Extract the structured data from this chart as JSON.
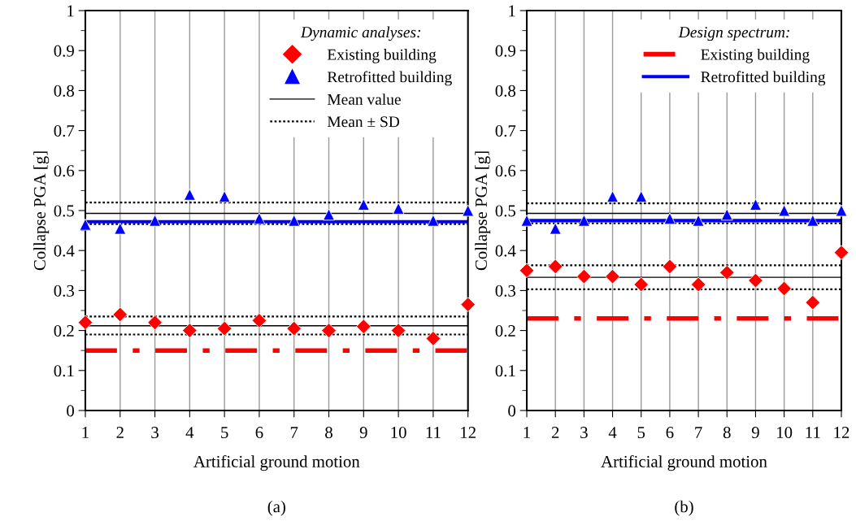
{
  "chart_data": [
    {
      "type": "scatter",
      "xlabel": "Artificial ground motion",
      "ylabel": "Collapse PGA [g]",
      "legend_title": "Dynamic analyses:",
      "legend": "top right",
      "grid": "x",
      "x": [
        1,
        2,
        3,
        4,
        5,
        6,
        7,
        8,
        9,
        10,
        11,
        12
      ],
      "xlim": [
        1,
        12
      ],
      "xticks": [
        1,
        2,
        3,
        4,
        5,
        6,
        7,
        8,
        9,
        10,
        11,
        12
      ],
      "ylim": [
        0,
        1
      ],
      "yticks": [
        0,
        0.1,
        0.2,
        0.3,
        0.4,
        0.5,
        0.6,
        0.7,
        0.8,
        0.9,
        1
      ],
      "series": [
        {
          "name": "Existing building",
          "color": "#ff0000",
          "marker": "diamond",
          "values": [
            0.22,
            0.24,
            0.22,
            0.2,
            0.205,
            0.225,
            0.205,
            0.2,
            0.21,
            0.2,
            0.18,
            0.265
          ]
        },
        {
          "name": "Retrofitted building",
          "color": "#0000ff",
          "marker": "triangle",
          "values": [
            0.465,
            0.455,
            0.475,
            0.54,
            0.535,
            0.48,
            0.475,
            0.49,
            0.515,
            0.505,
            0.475,
            0.5
          ]
        }
      ],
      "ref_lines": [
        {
          "axis": "y",
          "value": 0.15,
          "color": "#ff0000",
          "line_style": "dashed"
        },
        {
          "axis": "y",
          "value": 0.472,
          "color": "#0000ff",
          "line_style": "solid"
        },
        {
          "axis": "y",
          "value": 0.493,
          "label": "Mean value",
          "color": "#000000",
          "line_style": "solid"
        },
        {
          "axis": "y",
          "value": 0.212,
          "color": "#000000",
          "line_style": "solid"
        },
        {
          "axis": "y",
          "value": 0.52,
          "label": "Mean ± SD",
          "color": "#000000",
          "line_style": "dotted"
        },
        {
          "axis": "y",
          "value": 0.466,
          "color": "#000000",
          "line_style": "dotted"
        },
        {
          "axis": "y",
          "value": 0.235,
          "color": "#000000",
          "line_style": "dotted"
        },
        {
          "axis": "y",
          "value": 0.19,
          "color": "#000000",
          "line_style": "dotted"
        }
      ],
      "annotations": [
        "(a)"
      ]
    },
    {
      "type": "scatter",
      "xlabel": "Artificial ground motion",
      "ylabel": "Collapse PGA [g]",
      "legend_title": "Design spectrum:",
      "legend": "top right",
      "grid": "x",
      "x": [
        1,
        2,
        3,
        4,
        5,
        6,
        7,
        8,
        9,
        10,
        11,
        12
      ],
      "xlim": [
        1,
        12
      ],
      "xticks": [
        1,
        2,
        3,
        4,
        5,
        6,
        7,
        8,
        9,
        10,
        11,
        12
      ],
      "ylim": [
        0,
        1
      ],
      "yticks": [
        0,
        0.1,
        0.2,
        0.3,
        0.4,
        0.5,
        0.6,
        0.7,
        0.8,
        0.9,
        1
      ],
      "series": [
        {
          "color": "#ff0000",
          "marker": "diamond",
          "values": [
            0.35,
            0.36,
            0.335,
            0.335,
            0.315,
            0.36,
            0.315,
            0.345,
            0.325,
            0.305,
            0.27,
            0.395
          ]
        },
        {
          "color": "#0000ff",
          "marker": "triangle",
          "values": [
            0.475,
            0.455,
            0.475,
            0.535,
            0.535,
            0.48,
            0.475,
            0.49,
            0.515,
            0.5,
            0.475,
            0.5
          ]
        }
      ],
      "ref_lines": [
        {
          "axis": "y",
          "value": 0.23,
          "label": "Existing building",
          "color": "#ff0000",
          "line_style": "dashed"
        },
        {
          "axis": "y",
          "value": 0.475,
          "label": "Retrofitted building",
          "color": "#0000ff",
          "line_style": "solid"
        },
        {
          "axis": "y",
          "value": 0.493,
          "color": "#000000",
          "line_style": "solid"
        },
        {
          "axis": "y",
          "value": 0.333,
          "color": "#000000",
          "line_style": "solid"
        },
        {
          "axis": "y",
          "value": 0.518,
          "color": "#000000",
          "line_style": "dotted"
        },
        {
          "axis": "y",
          "value": 0.468,
          "color": "#000000",
          "line_style": "dotted"
        },
        {
          "axis": "y",
          "value": 0.363,
          "color": "#000000",
          "line_style": "dotted"
        },
        {
          "axis": "y",
          "value": 0.303,
          "color": "#000000",
          "line_style": "dotted"
        }
      ],
      "annotations": [
        "(b)"
      ]
    }
  ]
}
